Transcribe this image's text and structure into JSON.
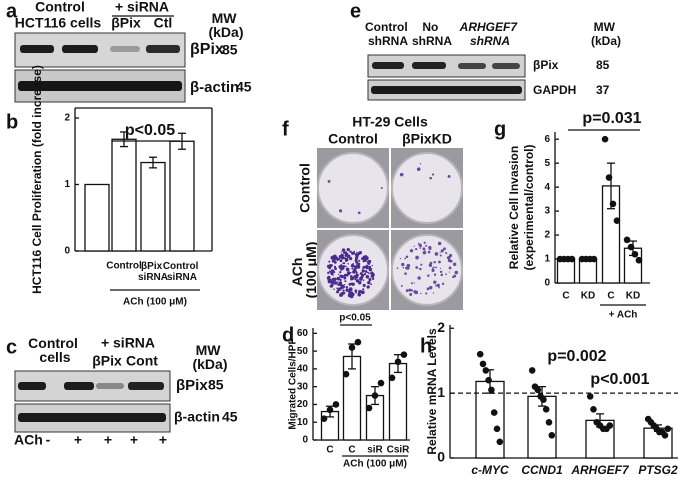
{
  "panels": {
    "a": {
      "label": "a",
      "header": [
        "Control",
        "+ siRNA"
      ],
      "lanes": [
        "HCT116 cells",
        "βPix",
        "Ctl"
      ],
      "mw_title": "MW (kDa)",
      "rows": [
        {
          "name": "βPix",
          "mw": 85
        },
        {
          "name": "β-actin",
          "mw": 45
        }
      ]
    },
    "c": {
      "label": "c",
      "header": [
        "Control cells",
        "+ siRNA"
      ],
      "lanes": [
        "βPix",
        "Cont"
      ],
      "mw_title": "MW (kDa)",
      "rows": [
        {
          "name": "βPix",
          "mw": 85
        },
        {
          "name": "β-actin",
          "mw": 45
        }
      ],
      "treatment": {
        "name": "ACh",
        "lanes": [
          "-",
          "+",
          "+",
          "+",
          "+"
        ]
      }
    },
    "e": {
      "label": "e",
      "lanes": [
        "Control shRNA",
        "No shRNA",
        "ARHGEF7 shRNA"
      ],
      "mw_title": "MW (kDa)",
      "rows": [
        {
          "name": "βPix",
          "mw": 85
        },
        {
          "name": "GAPDH",
          "mw": 37
        }
      ]
    },
    "f": {
      "label": "f",
      "title": "HT-29 Cells",
      "columns": [
        "Control",
        "βPixKD"
      ],
      "rows": [
        "Control",
        "ACh (100 μM)"
      ]
    }
  },
  "chart_data": [
    {
      "panel": "b",
      "type": "bar",
      "y_label": "HCT116 Cell Proliferation (fold increase)",
      "categories": [
        null,
        "Control",
        "βPix siRNA",
        "Control siRNA"
      ],
      "values": [
        1,
        1.68,
        1.33,
        1.65
      ],
      "errors": [
        null,
        0.11,
        0.08,
        0.12
      ],
      "color": "#ffffff",
      "ylim": [
        0,
        2.15
      ],
      "yticks": [
        0,
        1,
        2
      ],
      "annotation": "p<0.05",
      "group_label": "ACh (100 μM)"
    },
    {
      "panel": "d",
      "type": "bar",
      "y_label": "Migrated Cells/HPF",
      "categories": [
        "C",
        "C",
        "siR",
        "CsiR"
      ],
      "values": [
        16,
        47,
        25,
        43
      ],
      "errors": [
        3,
        7,
        5,
        5
      ],
      "points": [
        [
          12,
          17,
          20
        ],
        [
          37,
          52,
          55
        ],
        [
          18,
          25,
          32
        ],
        [
          35,
          44,
          48
        ]
      ],
      "color": "#ffffff",
      "ylim": [
        0,
        63
      ],
      "yticks": [
        0,
        10,
        20,
        30,
        40,
        50,
        60
      ],
      "annotation": "p<0.05",
      "group_label": "ACh (100 μM)"
    },
    {
      "panel": "g",
      "type": "bar",
      "y_label": [
        "Relative Cell Invasion",
        "(experimental/control)"
      ],
      "categories": [
        "C",
        "KD",
        "C",
        "KD"
      ],
      "values": [
        1,
        1,
        4.05,
        1.45
      ],
      "errors": [
        null,
        null,
        0.95,
        0.3
      ],
      "points": [
        [
          1,
          1,
          1,
          1
        ],
        [
          1,
          1,
          1,
          1
        ],
        [
          6.0,
          4.4,
          3.3,
          2.6
        ],
        [
          1.8,
          1.5,
          1.2,
          0.95
        ]
      ],
      "color": "#ffffff",
      "ylim": [
        0,
        6.3
      ],
      "yticks": [
        0,
        1,
        2,
        3,
        4,
        5,
        6
      ],
      "annotation": "p=0.031",
      "group_label": "+ ACh"
    },
    {
      "panel": "h",
      "type": "bar",
      "y_label": "Relative mRNA Levels",
      "categories": [
        "c-MYC",
        "CCND1",
        "ARHGEF7",
        "PTSG2"
      ],
      "values": [
        1.18,
        0.95,
        0.58,
        0.46
      ],
      "errors": [
        0.18,
        0.15,
        0.1,
        0.05
      ],
      "points": [
        [
          1.6,
          1.45,
          1.35,
          1.2,
          1.05,
          0.7,
          0.45,
          0.25
        ],
        [
          1.35,
          1.1,
          1.05,
          0.95,
          0.9,
          0.75,
          0.55,
          0.35
        ],
        [
          0.95,
          0.75,
          0.55,
          0.5,
          0.45,
          0.45,
          0.5
        ],
        [
          0.6,
          0.55,
          0.5,
          0.45,
          0.4,
          0.4,
          0.35,
          0.45
        ]
      ],
      "color": "#ffffff",
      "ylim": [
        0,
        2.05
      ],
      "yticks": [
        0,
        1,
        2
      ],
      "reference_line": 1,
      "annotations": [
        "p=0.002",
        "p<0.001"
      ]
    }
  ]
}
